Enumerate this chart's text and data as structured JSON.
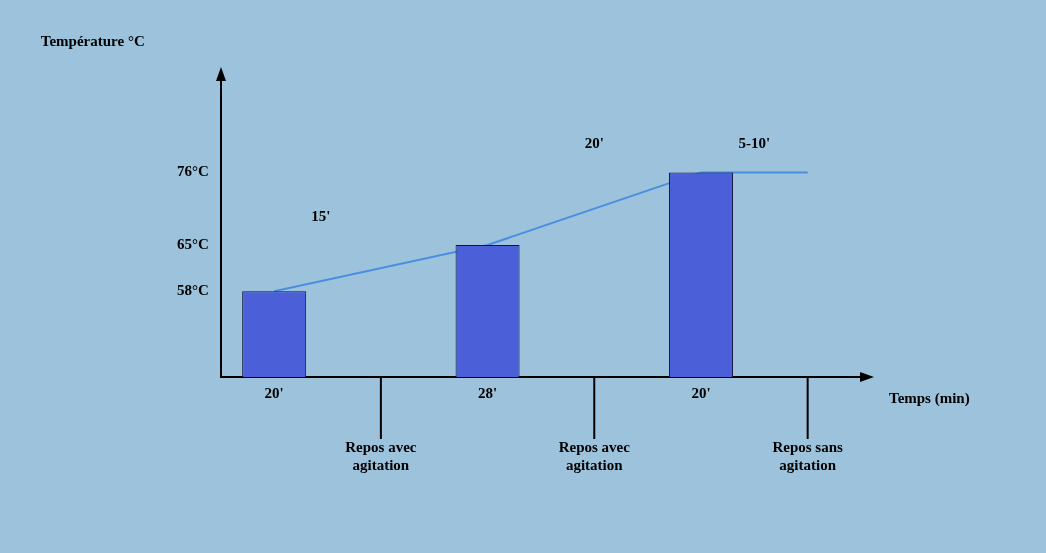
{
  "chart_data": {
    "type": "bar",
    "ylabel": "Température °C",
    "xlabel": "Temps (min)",
    "categories": [
      "20'",
      "Repos avec agitation",
      "28'",
      "Repos avec agitation",
      "20'",
      "Repos sans agitation"
    ],
    "series": [
      {
        "color": "#4a5fd8",
        "values": [
          58,
          null,
          65,
          null,
          76,
          null
        ]
      },
      {
        "type": "line",
        "color": "#4a8ee0",
        "values": [
          58,
          null,
          65,
          null,
          76,
          76
        ]
      }
    ],
    "ylim": [
      45,
      90
    ],
    "yticks": [
      {
        "value": 58,
        "label": "58°C"
      },
      {
        "value": 65,
        "label": "65°C"
      },
      {
        "value": 76,
        "label": "76°C"
      }
    ],
    "annotations": [
      "15'",
      "20'",
      "5-10'"
    ],
    "grid": false,
    "legend": false,
    "marker": "none",
    "line_style": "solid"
  }
}
